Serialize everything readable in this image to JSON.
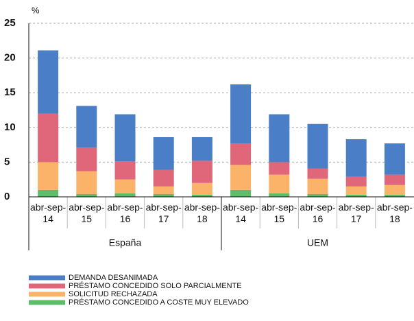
{
  "chart_data": {
    "type": "stacked_bar",
    "unit_label": "%",
    "categories": [
      "abr-sep-14",
      "abr-sep-15",
      "abr-sep-16",
      "abr-sep-17",
      "abr-sep-18",
      "abr-sep-14",
      "abr-sep-15",
      "abr-sep-16",
      "abr-sep-17",
      "abr-sep-18"
    ],
    "groups": [
      "España",
      "UEM"
    ],
    "series": [
      {
        "name": "PRÉSTAMO CONCEDIDO A COSTE MUY ELEVADO",
        "color": "#5cbd6a",
        "values": [
          1.0,
          0.4,
          0.5,
          0.4,
          0.3,
          1.0,
          0.5,
          0.4,
          0.3,
          0.3
        ]
      },
      {
        "name": "SOLICITUD RECHAZADA",
        "color": "#fbb36a",
        "values": [
          4.0,
          3.3,
          2.0,
          1.1,
          1.7,
          3.6,
          2.7,
          2.2,
          1.2,
          1.4
        ]
      },
      {
        "name": "PRÉSTAMO CONCEDIDO SOLO PARCIALMENTE",
        "color": "#e0667a",
        "values": [
          7.0,
          3.4,
          2.6,
          2.4,
          3.2,
          3.1,
          1.8,
          1.5,
          1.4,
          1.5
        ]
      },
      {
        "name": "DEMANDA DESANIMADA",
        "color": "#4a7fc8",
        "values": [
          9.1,
          6.0,
          6.8,
          4.7,
          3.4,
          8.5,
          6.9,
          6.4,
          5.4,
          4.5
        ]
      }
    ],
    "ylim": [
      0,
      25
    ],
    "yticks": [
      0,
      5,
      10,
      15,
      20,
      25
    ],
    "grid": true,
    "legend": "bottom-left"
  }
}
